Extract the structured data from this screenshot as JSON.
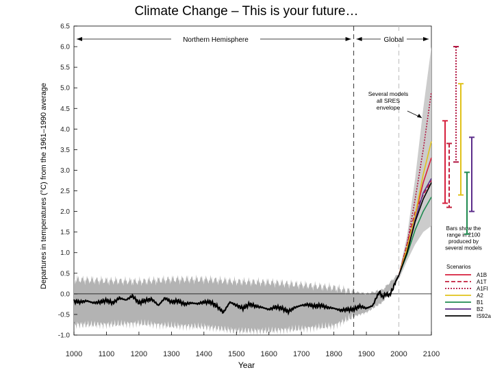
{
  "slide": {
    "title": "Climate Change – This is your future…"
  },
  "chart_data": {
    "type": "line",
    "xlabel": "Year",
    "ylabel": "Departures in temperatures (°C) from the 1961–1990 average",
    "xlim": [
      1000,
      2100
    ],
    "ylim": [
      -1.0,
      6.5
    ],
    "x_ticks": [
      "1000",
      "1100",
      "1200",
      "1300",
      "1400",
      "1500",
      "1600",
      "1700",
      "1800",
      "1900",
      "2000",
      "2100"
    ],
    "y_ticks": [
      "-1.0",
      "-0.5",
      "0.0",
      "0.5",
      "1.0",
      "1.5",
      "2.0",
      "2.5",
      "3.0",
      "3.5",
      "4.0",
      "4.5",
      "5.0",
      "5.5",
      "6.0",
      "6.5"
    ],
    "regions": {
      "left_label": "Northern Hemisphere",
      "right_label": "Global",
      "divider_year": 1861,
      "end_observed_year": 2000
    },
    "annotations": {
      "envelope_note": [
        "Several models",
        "all SRES",
        "envelope"
      ],
      "bars_note": [
        "Bars show the",
        "range in 2100",
        "produced by",
        "several models"
      ]
    },
    "observed": {
      "x": [
        1000,
        1020,
        1040,
        1060,
        1080,
        1100,
        1120,
        1140,
        1160,
        1180,
        1200,
        1220,
        1240,
        1260,
        1280,
        1300,
        1320,
        1340,
        1360,
        1380,
        1400,
        1420,
        1440,
        1460,
        1480,
        1500,
        1520,
        1540,
        1560,
        1580,
        1600,
        1620,
        1640,
        1660,
        1680,
        1700,
        1720,
        1740,
        1760,
        1780,
        1800,
        1820,
        1840,
        1860,
        1880,
        1900,
        1910,
        1920,
        1930,
        1940,
        1950,
        1960,
        1970,
        1980,
        1990,
        2000
      ],
      "y": [
        -0.18,
        -0.2,
        -0.17,
        -0.22,
        -0.2,
        -0.16,
        -0.22,
        -0.1,
        -0.15,
        -0.05,
        -0.22,
        -0.16,
        -0.13,
        -0.28,
        -0.1,
        -0.2,
        -0.17,
        -0.25,
        -0.22,
        -0.24,
        -0.2,
        -0.2,
        -0.3,
        -0.45,
        -0.2,
        -0.28,
        -0.35,
        -0.25,
        -0.3,
        -0.33,
        -0.38,
        -0.32,
        -0.35,
        -0.43,
        -0.33,
        -0.28,
        -0.26,
        -0.3,
        -0.28,
        -0.33,
        -0.35,
        -0.4,
        -0.38,
        -0.38,
        -0.3,
        -0.35,
        -0.32,
        -0.28,
        -0.1,
        0.05,
        -0.08,
        0.0,
        -0.04,
        0.1,
        0.3,
        0.45
      ]
    },
    "uncertainty_band": {
      "x": [
        1000,
        1100,
        1200,
        1300,
        1400,
        1500,
        1600,
        1700,
        1800,
        1860,
        1900,
        1950,
        2000
      ],
      "upper": [
        0.35,
        0.32,
        0.3,
        0.35,
        0.35,
        0.3,
        0.28,
        0.22,
        0.15,
        0.05,
        0.0,
        0.1,
        0.5
      ],
      "lower": [
        -0.75,
        -0.75,
        -0.72,
        -0.78,
        -0.8,
        -0.9,
        -0.9,
        -0.85,
        -0.78,
        -0.55,
        -0.45,
        -0.2,
        0.4
      ]
    },
    "projection_envelope": {
      "x": [
        2000,
        2025,
        2050,
        2075,
        2100
      ],
      "upper": [
        0.5,
        1.4,
        2.8,
        4.5,
        6.0
      ],
      "lower": [
        0.35,
        0.8,
        1.2,
        1.5,
        1.65
      ]
    },
    "legend": {
      "title": "Scenarios",
      "placement": "bottom-right"
    },
    "series": [
      {
        "name": "A1B",
        "color": "#d61f3c",
        "style": "solid",
        "x": [
          2000,
          2025,
          2050,
          2075,
          2100
        ],
        "y": [
          0.45,
          1.1,
          1.9,
          2.7,
          3.3
        ],
        "range": [
          2.2,
          4.2
        ]
      },
      {
        "name": "A1T",
        "color": "#c21f3c",
        "style": "dashed",
        "x": [
          2000,
          2025,
          2050,
          2075,
          2100
        ],
        "y": [
          0.45,
          1.2,
          2.0,
          2.4,
          2.75
        ],
        "range": [
          2.1,
          3.65
        ]
      },
      {
        "name": "A1FI",
        "color": "#b0103c",
        "style": "dotted",
        "x": [
          2000,
          2025,
          2050,
          2075,
          2100
        ],
        "y": [
          0.45,
          1.2,
          2.3,
          3.5,
          4.9
        ],
        "range": [
          3.2,
          6.0
        ]
      },
      {
        "name": "A2",
        "color": "#e0c21a",
        "style": "solid",
        "x": [
          2000,
          2025,
          2050,
          2075,
          2100
        ],
        "y": [
          0.45,
          1.1,
          1.9,
          2.9,
          3.7
        ],
        "range": [
          2.4,
          5.1
        ]
      },
      {
        "name": "B1",
        "color": "#1e8a4f",
        "style": "solid",
        "x": [
          2000,
          2025,
          2050,
          2075,
          2100
        ],
        "y": [
          0.45,
          0.95,
          1.55,
          2.0,
          2.35
        ],
        "range": [
          1.45,
          2.95
        ]
      },
      {
        "name": "B2",
        "color": "#5b2c8a",
        "style": "solid",
        "x": [
          2000,
          2025,
          2050,
          2075,
          2100
        ],
        "y": [
          0.45,
          1.0,
          1.8,
          2.45,
          2.8
        ],
        "range": [
          2.0,
          3.8
        ]
      },
      {
        "name": "IS92a",
        "color": "#000000",
        "style": "solid",
        "x": [
          2000,
          2025,
          2050,
          2075,
          2100
        ],
        "y": [
          0.45,
          1.0,
          1.75,
          2.3,
          2.7
        ],
        "range": null
      }
    ]
  }
}
